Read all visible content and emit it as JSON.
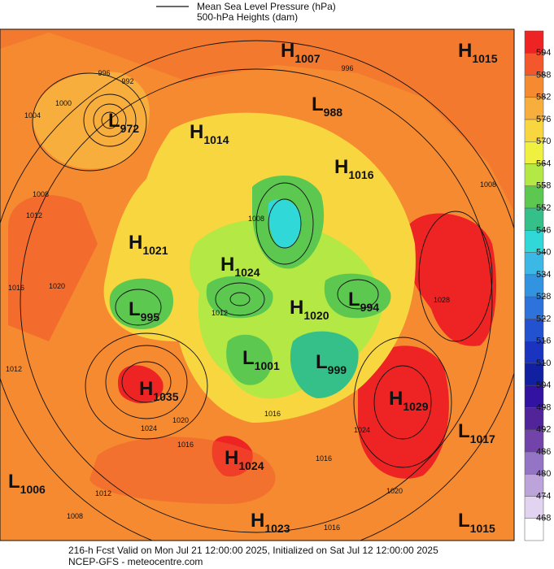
{
  "header": {
    "legend": [
      "Mean Sea Level Pressure (hPa)",
      "500-hPa Heights (dam)"
    ]
  },
  "colorbar": {
    "ticks": [
      594,
      588,
      582,
      576,
      570,
      564,
      558,
      552,
      546,
      540,
      534,
      528,
      522,
      516,
      510,
      504,
      498,
      492,
      486,
      480,
      474,
      468
    ],
    "colors": [
      "#ee2424",
      "#f2582c",
      "#f58a30",
      "#f8ae3c",
      "#f8d640",
      "#f0f040",
      "#b4e844",
      "#5cc850",
      "#34c088",
      "#30d8d8",
      "#3cb8e6",
      "#3294e0",
      "#2e72dc",
      "#2252d0",
      "#1a34c0",
      "#1020a0",
      "#3212a0",
      "#52249a",
      "#7244aa",
      "#9474c4",
      "#bca4da",
      "#e2d4f0",
      "#ffffff"
    ]
  },
  "pressure_centers": [
    {
      "type": "H",
      "value": 1007
    },
    {
      "type": "H",
      "value": 1015
    },
    {
      "type": "L",
      "value": 988
    },
    {
      "type": "L",
      "value": 972
    },
    {
      "type": "H",
      "value": 1014
    },
    {
      "type": "H",
      "value": 1016
    },
    {
      "type": "H",
      "value": 1021
    },
    {
      "type": "H",
      "value": 1024
    },
    {
      "type": "L",
      "value": 995
    },
    {
      "type": "H",
      "value": 1020
    },
    {
      "type": "L",
      "value": 994
    },
    {
      "type": "L",
      "value": 1001
    },
    {
      "type": "L",
      "value": 999
    },
    {
      "type": "H",
      "value": 1035
    },
    {
      "type": "H",
      "value": 1029
    },
    {
      "type": "L",
      "value": 1017
    },
    {
      "type": "H",
      "value": 1024
    },
    {
      "type": "L",
      "value": 1006
    },
    {
      "type": "H",
      "value": 1023
    },
    {
      "type": "L",
      "value": 1015
    }
  ],
  "isobar_labels": [
    996,
    992,
    1000,
    1004,
    1008,
    1012,
    1016,
    1020,
    1012,
    1024,
    1020,
    1016,
    1012,
    1008,
    1008,
    1028,
    1024,
    1020,
    1016,
    1012,
    1016,
    1016,
    996,
    1008
  ],
  "footer": [
    "216-h Fcst Valid on Mon Jul 21 12:00:00 2025, Initialized on Sat Jul 12 12:00:00 2025",
    "NCEP-GFS  - meteocentre.com"
  ]
}
